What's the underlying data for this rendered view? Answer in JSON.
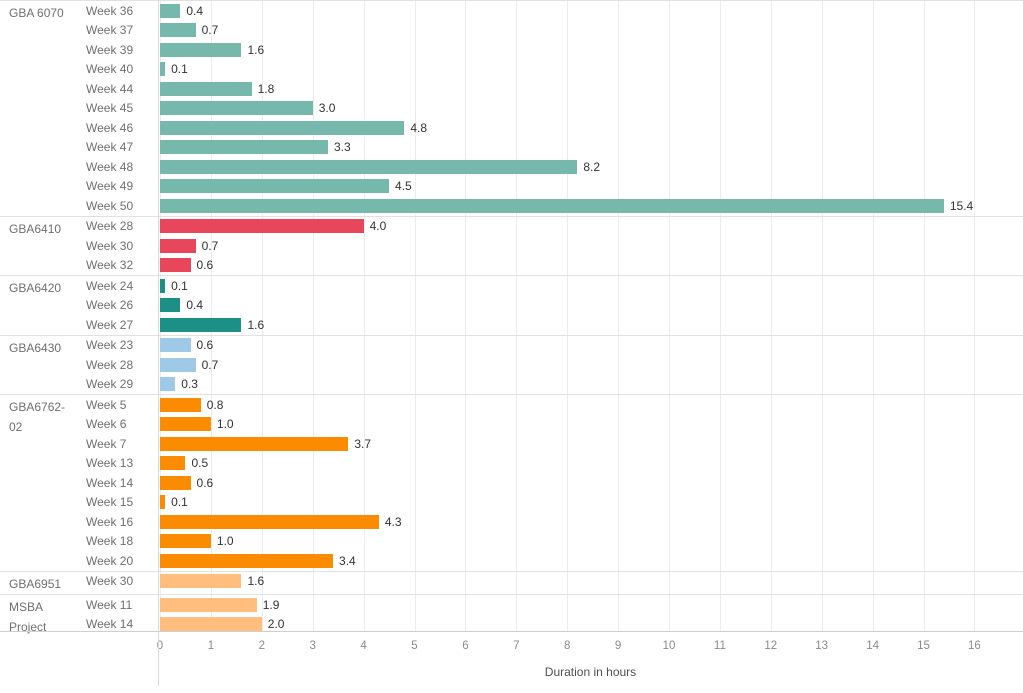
{
  "chart_data": {
    "type": "bar",
    "orientation": "horizontal",
    "title": "",
    "xlabel": "Duration in hours",
    "ylabel": "",
    "xlim": [
      0,
      16
    ],
    "grid": true,
    "axis": {
      "min": 0,
      "max": 16,
      "ticks": [
        0,
        1,
        2,
        3,
        4,
        5,
        6,
        7,
        8,
        9,
        10,
        11,
        12,
        13,
        14,
        15,
        16
      ]
    },
    "groups": [
      {
        "course": "GBA 6070",
        "color": "#76b8ac",
        "rows": [
          {
            "week": "Week 36",
            "value": 0.4
          },
          {
            "week": "Week 37",
            "value": 0.7
          },
          {
            "week": "Week 39",
            "value": 1.6
          },
          {
            "week": "Week 40",
            "value": 0.1
          },
          {
            "week": "Week 44",
            "value": 1.8
          },
          {
            "week": "Week 45",
            "value": 3.0
          },
          {
            "week": "Week 46",
            "value": 4.8
          },
          {
            "week": "Week 47",
            "value": 3.3
          },
          {
            "week": "Week 48",
            "value": 8.2
          },
          {
            "week": "Week 49",
            "value": 4.5
          },
          {
            "week": "Week 50",
            "value": 15.4
          }
        ]
      },
      {
        "course": "GBA6410",
        "color": "#e8465a",
        "rows": [
          {
            "week": "Week 28",
            "value": 4.0
          },
          {
            "week": "Week 30",
            "value": 0.7
          },
          {
            "week": "Week 32",
            "value": 0.6
          }
        ]
      },
      {
        "course": "GBA6420",
        "color": "#1c8f86",
        "rows": [
          {
            "week": "Week 24",
            "value": 0.1
          },
          {
            "week": "Week 26",
            "value": 0.4
          },
          {
            "week": "Week 27",
            "value": 1.6
          }
        ]
      },
      {
        "course": "GBA6430",
        "color": "#9fcae7",
        "rows": [
          {
            "week": "Week 23",
            "value": 0.6
          },
          {
            "week": "Week 28",
            "value": 0.7
          },
          {
            "week": "Week 29",
            "value": 0.3
          }
        ]
      },
      {
        "course": "GBA6762-02",
        "color": "#fb8b00",
        "rows": [
          {
            "week": "Week 5",
            "value": 0.8
          },
          {
            "week": "Week 6",
            "value": 1.0
          },
          {
            "week": "Week 7",
            "value": 3.7
          },
          {
            "week": "Week 13",
            "value": 0.5
          },
          {
            "week": "Week 14",
            "value": 0.6
          },
          {
            "week": "Week 15",
            "value": 0.1
          },
          {
            "week": "Week 16",
            "value": 4.3
          },
          {
            "week": "Week 18",
            "value": 1.0
          },
          {
            "week": "Week 20",
            "value": 3.4
          }
        ]
      },
      {
        "course": "GBA6951",
        "color": "#ffbe7d",
        "rows": [
          {
            "week": "Week 30",
            "value": 1.6
          }
        ]
      },
      {
        "course": "MSBA Project",
        "color": "#ffbe7d",
        "rows": [
          {
            "week": "Week 11",
            "value": 1.9
          },
          {
            "week": "Week 14",
            "value": 2.0
          }
        ]
      }
    ]
  }
}
